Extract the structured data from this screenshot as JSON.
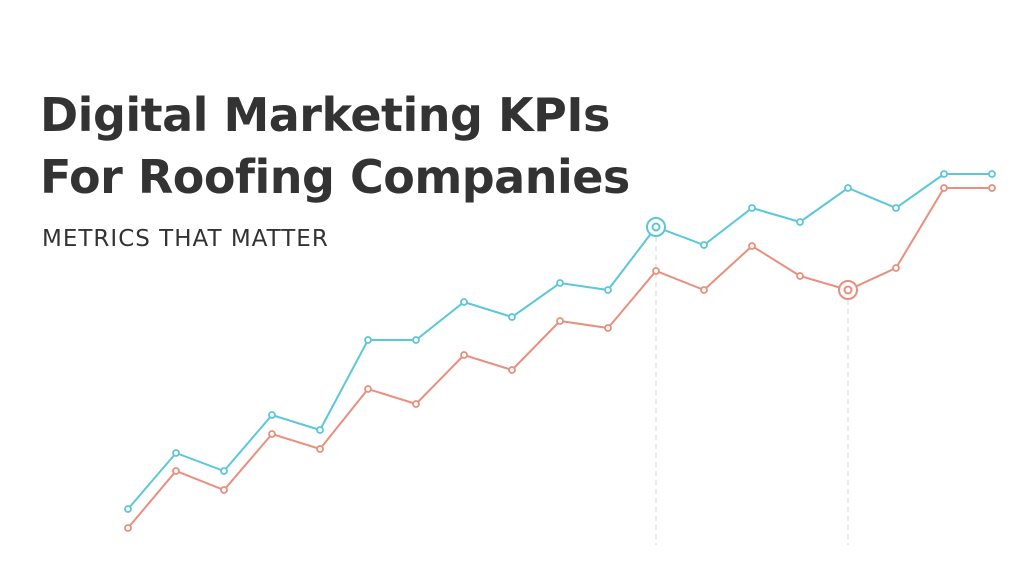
{
  "chart_data": {
    "type": "line",
    "title": [
      "Digital Marketing KPIs",
      "For Roofing Companies"
    ],
    "subtitle": "METRICS THAT MATTER",
    "series": [
      {
        "color": "#5cc6db",
        "highlight": 11,
        "values": [
          31,
          87,
          69,
          125,
          110,
          200,
          200,
          238,
          223,
          257,
          250,
          313,
          295,
          332,
          318,
          352,
          332,
          366,
          366
        ]
      },
      {
        "color": "#e88f7d",
        "highlight": 15,
        "values": [
          12,
          69,
          50,
          106,
          91,
          151,
          136,
          185,
          170,
          219,
          212,
          269,
          250,
          294,
          264,
          250,
          272,
          352,
          352
        ]
      }
    ]
  }
}
